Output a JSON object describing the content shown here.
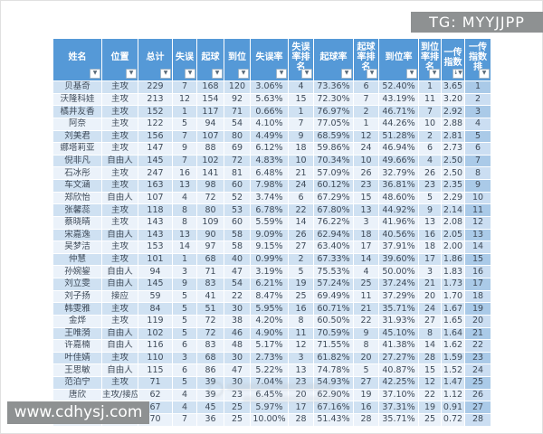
{
  "watermarks": {
    "top_right_badge": "TG: MYYJJPP",
    "bottom_left_badge": "www.cdhysj.com"
  },
  "icons": {
    "filter": "▼",
    "sort_desc": "↓"
  },
  "table": {
    "columns": [
      {
        "id": "name",
        "label": "姓名"
      },
      {
        "id": "position",
        "label": "位置"
      },
      {
        "id": "total",
        "label": "总计"
      },
      {
        "id": "errors",
        "label": "失误"
      },
      {
        "id": "digs",
        "label": "起球"
      },
      {
        "id": "in-position",
        "label": "到位"
      },
      {
        "id": "error-rate",
        "label": "失误率"
      },
      {
        "id": "error-rate-rank",
        "label": "失误\n率排\n名"
      },
      {
        "id": "dig-rate",
        "label": "起球率"
      },
      {
        "id": "dig-rate-rank",
        "label": "起球\n率排\n名"
      },
      {
        "id": "in-position-rate",
        "label": "到位率"
      },
      {
        "id": "in-position-rate-rank",
        "label": "到位\n率排\n名"
      },
      {
        "id": "pass-index",
        "label": "一传\n指数",
        "sorted": true
      },
      {
        "id": "pass-index-rank",
        "label": "一传\n指数\n排"
      }
    ],
    "rows": [
      [
        "贝基奇",
        "主攻",
        229,
        7,
        168,
        120,
        "3.06%",
        4,
        "73.36%",
        6,
        "52.40%",
        1,
        "3.65",
        1
      ],
      [
        "沃隆科娃",
        "主攻",
        213,
        12,
        154,
        92,
        "5.63%",
        15,
        "72.30%",
        7,
        "43.19%",
        11,
        "3.20",
        2
      ],
      [
        "橘井友香",
        "主攻",
        152,
        1,
        117,
        71,
        "0.66%",
        1,
        "76.97%",
        2,
        "46.71%",
        7,
        "2.92",
        3
      ],
      [
        "阿奈",
        "主攻",
        122,
        5,
        94,
        54,
        "4.10%",
        7,
        "77.05%",
        1,
        "44.26%",
        10,
        "2.88",
        4
      ],
      [
        "刘美君",
        "主攻",
        156,
        7,
        107,
        80,
        "4.49%",
        9,
        "68.59%",
        12,
        "51.28%",
        2,
        "2.81",
        5
      ],
      [
        "娜塔莉亚",
        "主攻",
        147,
        9,
        88,
        69,
        "6.12%",
        18,
        "59.86%",
        24,
        "46.94%",
        6,
        "2.73",
        6
      ],
      [
        "倪非凡",
        "自由人",
        145,
        7,
        102,
        72,
        "4.83%",
        10,
        "70.34%",
        10,
        "49.66%",
        4,
        "2.50",
        7
      ],
      [
        "石冰彤",
        "主攻",
        247,
        16,
        141,
        81,
        "6.48%",
        21,
        "57.09%",
        26,
        "32.79%",
        26,
        "2.50",
        8
      ],
      [
        "车文涵",
        "主攻",
        163,
        13,
        98,
        60,
        "7.98%",
        24,
        "60.12%",
        23,
        "36.81%",
        23,
        "2.35",
        9
      ],
      [
        "郑欣怡",
        "自由人",
        107,
        4,
        72,
        52,
        "3.74%",
        6,
        "67.29%",
        15,
        "48.60%",
        5,
        "2.29",
        10
      ],
      [
        "张馨蕊",
        "主攻",
        118,
        8,
        80,
        53,
        "6.78%",
        22,
        "67.80%",
        13,
        "44.92%",
        9,
        "2.14",
        11
      ],
      [
        "蔡晓晴",
        "主攻",
        143,
        8,
        109,
        60,
        "5.59%",
        14,
        "76.22%",
        3,
        "41.96%",
        13,
        "2.08",
        12
      ],
      [
        "宋嘉逸",
        "自由人",
        143,
        13,
        90,
        58,
        "9.09%",
        26,
        "62.94%",
        18,
        "40.56%",
        16,
        "2.05",
        13
      ],
      [
        "吴梦洁",
        "主攻",
        153,
        14,
        97,
        58,
        "9.15%",
        27,
        "63.40%",
        17,
        "37.91%",
        18,
        "2.00",
        14
      ],
      [
        "仲慧",
        "主攻",
        101,
        1,
        68,
        40,
        "0.99%",
        2,
        "67.33%",
        14,
        "39.60%",
        17,
        "1.86",
        15
      ],
      [
        "孙婉鋆",
        "自由人",
        94,
        3,
        71,
        47,
        "3.19%",
        5,
        "75.53%",
        4,
        "50.00%",
        3,
        "1.83",
        16
      ],
      [
        "刘立雯",
        "自由人",
        145,
        9,
        83,
        54,
        "6.21%",
        19,
        "57.24%",
        25,
        "37.24%",
        21,
        "1.73",
        17
      ],
      [
        "刘子扬",
        "接应",
        59,
        5,
        41,
        22,
        "8.47%",
        25,
        "69.49%",
        11,
        "37.29%",
        20,
        "1.70",
        18
      ],
      [
        "韩雯雅",
        "主攻",
        84,
        5,
        51,
        30,
        "5.95%",
        16,
        "60.71%",
        21,
        "35.71%",
        24,
        "1.67",
        19
      ],
      [
        "金烨",
        "主攻",
        119,
        5,
        72,
        38,
        "4.20%",
        8,
        "60.50%",
        22,
        "31.93%",
        27,
        "1.65",
        20
      ],
      [
        "王唯漪",
        "自由人",
        102,
        5,
        72,
        46,
        "4.90%",
        11,
        "70.59%",
        9,
        "45.10%",
        8,
        "1.64",
        21
      ],
      [
        "许嘉楠",
        "自由人",
        116,
        6,
        83,
        48,
        "5.17%",
        12,
        "71.55%",
        8,
        "41.38%",
        14,
        "1.62",
        22
      ],
      [
        "叶佳婧",
        "主攻",
        110,
        3,
        68,
        30,
        "2.73%",
        3,
        "61.82%",
        20,
        "27.27%",
        28,
        "1.59",
        23
      ],
      [
        "王思敏",
        "自由人",
        115,
        6,
        86,
        47,
        "5.22%",
        13,
        "74.78%",
        5,
        "40.87%",
        15,
        "1.52",
        24
      ],
      [
        "范泊宁",
        "主攻",
        71,
        5,
        39,
        30,
        "7.04%",
        23,
        "54.93%",
        27,
        "42.25%",
        12,
        "1.47",
        25
      ],
      [
        "唐欣",
        "主攻/接应",
        62,
        4,
        39,
        23,
        "6.45%",
        20,
        "62.90%",
        19,
        "37.10%",
        22,
        "1.12",
        26
      ],
      [
        "郭湘玲",
        "接应/主攻",
        67,
        4,
        45,
        25,
        "5.97%",
        17,
        "67.16%",
        16,
        "37.31%",
        19,
        "0.91",
        27
      ],
      [
        "李晨瑄",
        "主攻",
        70,
        7,
        36,
        25,
        "10.00%",
        28,
        "51.43%",
        28,
        "35.71%",
        25,
        "0.72",
        28
      ]
    ]
  }
}
